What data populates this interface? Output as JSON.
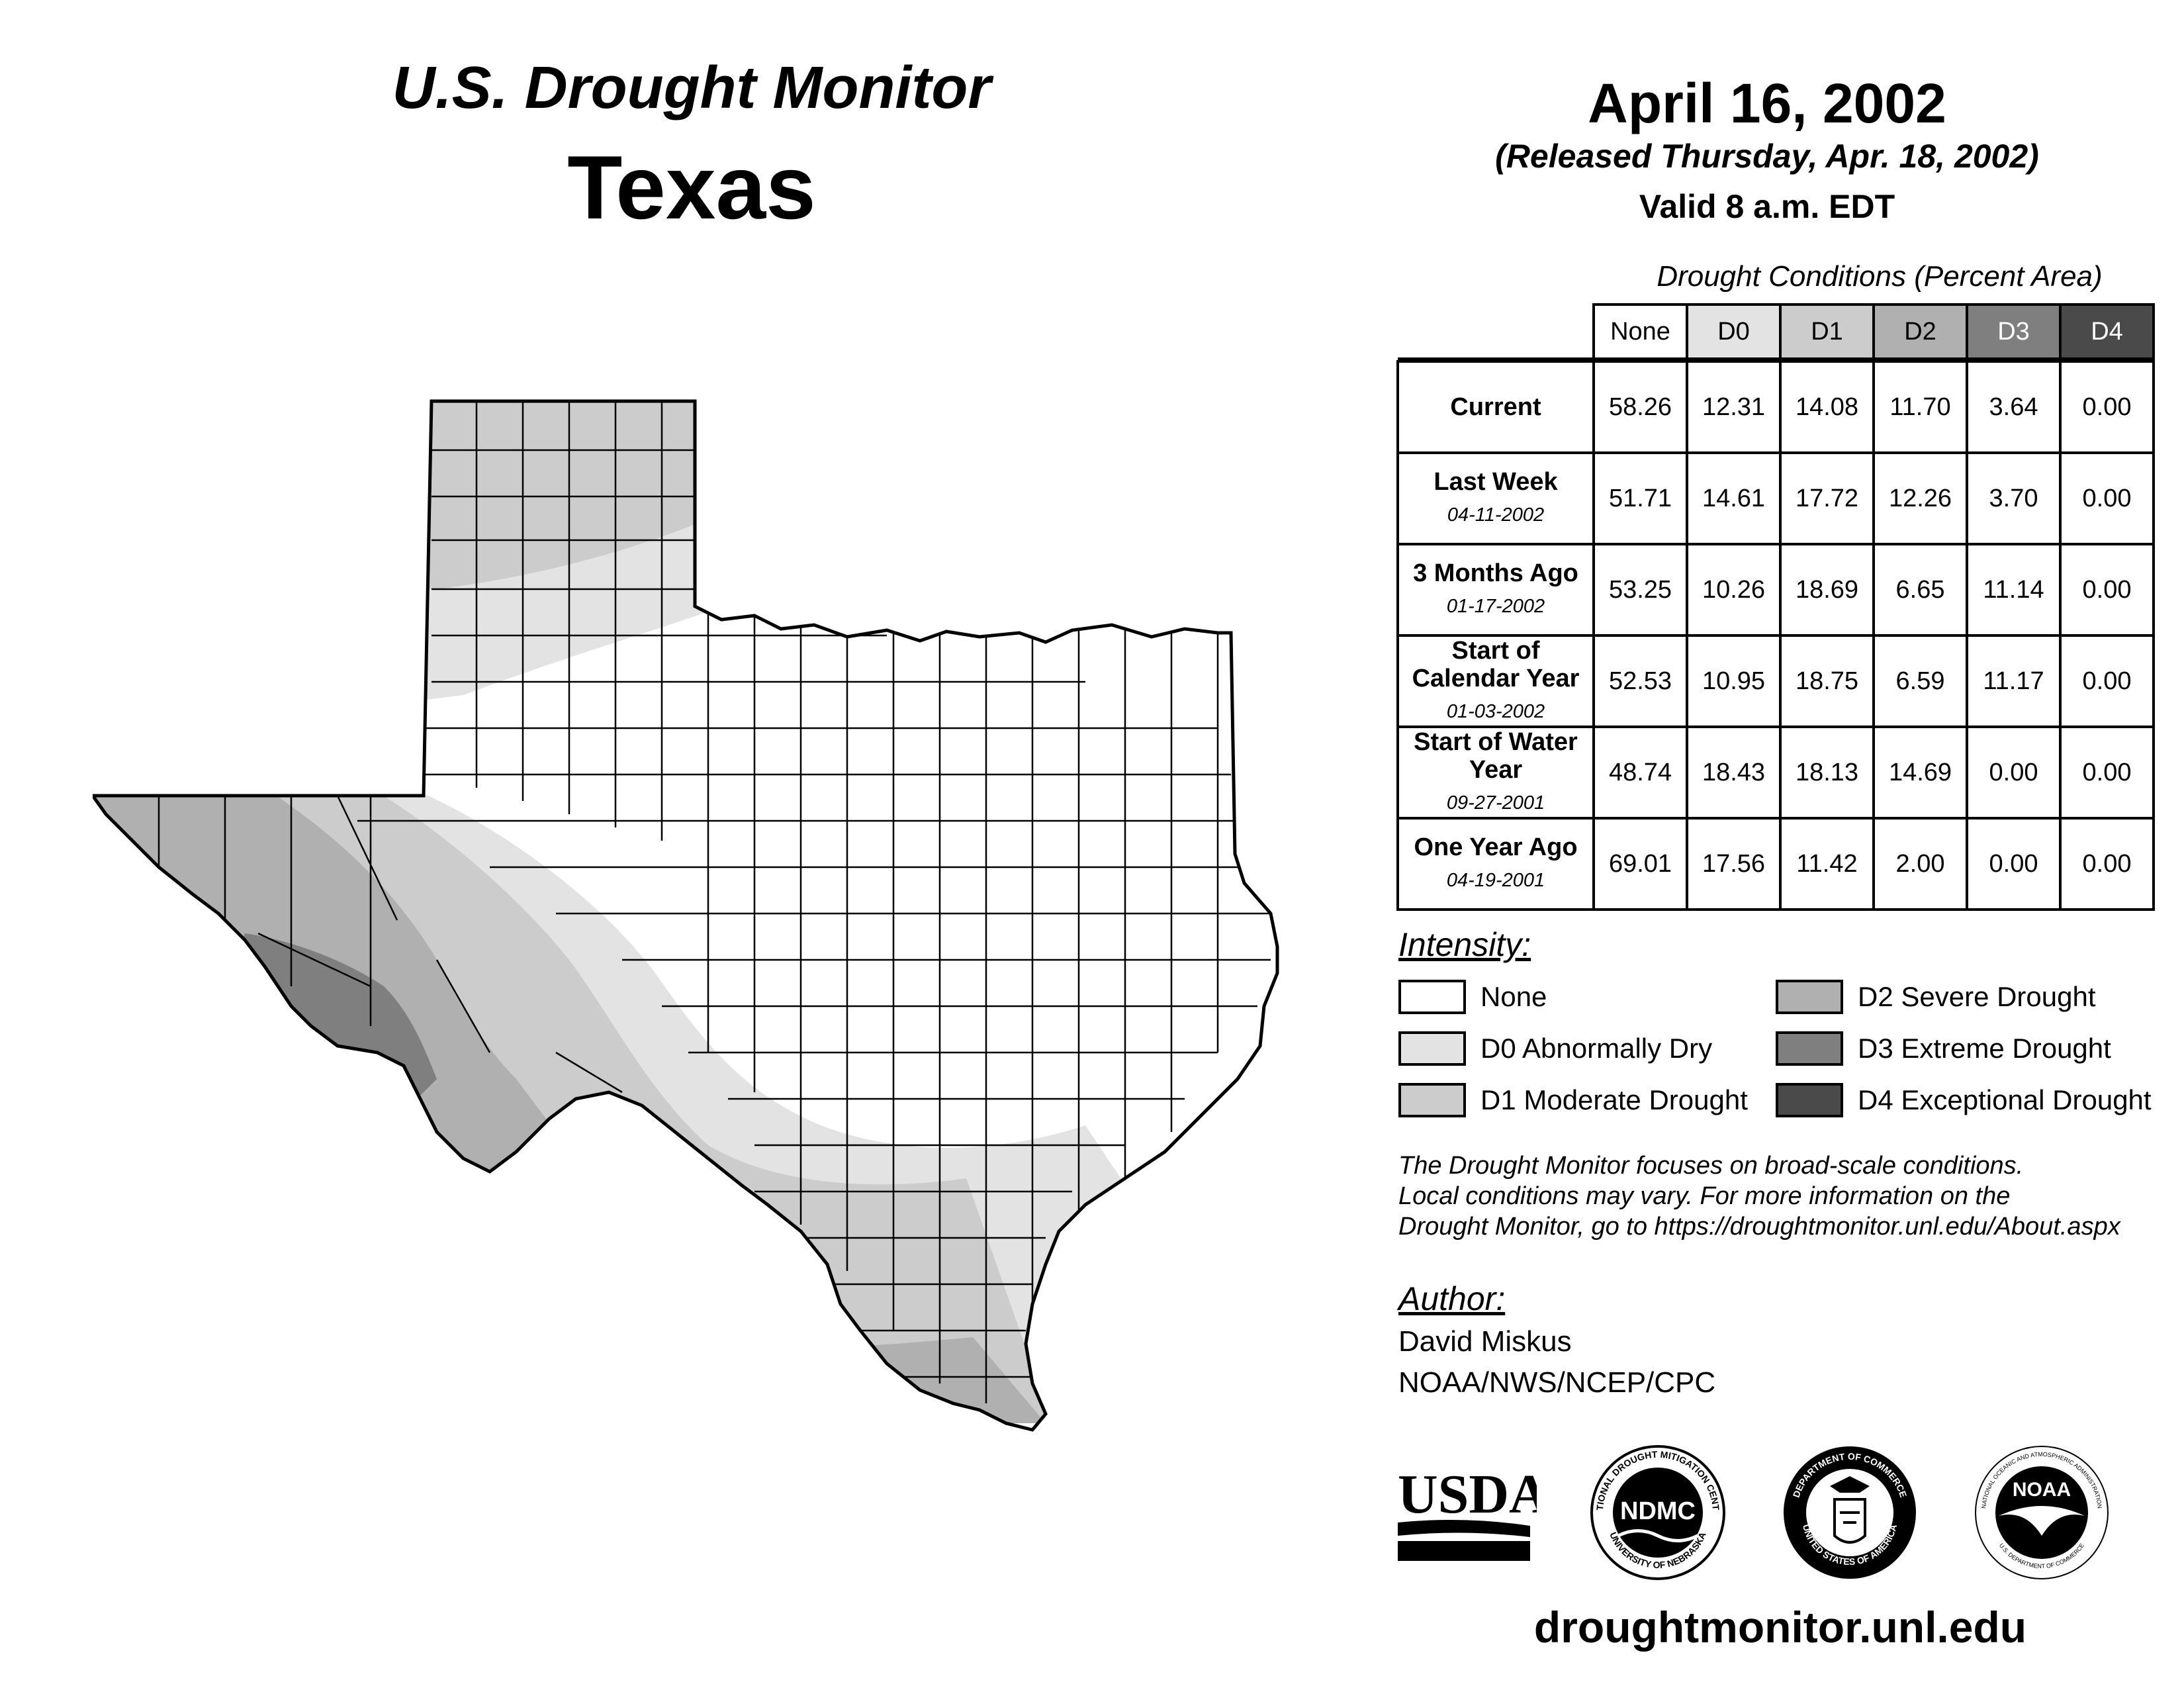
{
  "header": {
    "title_line1": "U.S. Drought Monitor",
    "title_line2": "Texas",
    "date": "April 16, 2002",
    "released": "(Released Thursday, Apr. 18, 2002)",
    "valid": "Valid 8 a.m. EDT"
  },
  "table": {
    "title": "Drought Conditions (Percent Area)",
    "columns": [
      "None",
      "D0",
      "D1",
      "D2",
      "D3",
      "D4"
    ],
    "column_colors": [
      "#ffffff",
      "#e3e3e3",
      "#cccccc",
      "#b0b0b0",
      "#7f7f7f",
      "#4a4a4a"
    ],
    "rows": [
      {
        "label": "Current",
        "sub": "",
        "values": [
          "58.26",
          "12.31",
          "14.08",
          "11.70",
          "3.64",
          "0.00"
        ]
      },
      {
        "label": "Last Week",
        "sub": "04-11-2002",
        "values": [
          "51.71",
          "14.61",
          "17.72",
          "12.26",
          "3.70",
          "0.00"
        ]
      },
      {
        "label": "3 Months Ago",
        "sub": "01-17-2002",
        "values": [
          "53.25",
          "10.26",
          "18.69",
          "6.65",
          "11.14",
          "0.00"
        ]
      },
      {
        "label": "Start of Calendar Year",
        "sub": "01-03-2002",
        "values": [
          "52.53",
          "10.95",
          "18.75",
          "6.59",
          "11.17",
          "0.00"
        ]
      },
      {
        "label": "Start of Water Year",
        "sub": "09-27-2001",
        "values": [
          "48.74",
          "18.43",
          "18.13",
          "14.69",
          "0.00",
          "0.00"
        ]
      },
      {
        "label": "One Year Ago",
        "sub": "04-19-2001",
        "values": [
          "69.01",
          "17.56",
          "11.42",
          "2.00",
          "0.00",
          "0.00"
        ]
      }
    ]
  },
  "legend": {
    "title": "Intensity:",
    "items": [
      {
        "label": "None",
        "color": "#ffffff"
      },
      {
        "label": "D0 Abnormally Dry",
        "color": "#e3e3e3"
      },
      {
        "label": "D1 Moderate Drought",
        "color": "#cccccc"
      },
      {
        "label": "D2 Severe Drought",
        "color": "#b0b0b0"
      },
      {
        "label": "D3 Extreme Drought",
        "color": "#7f7f7f"
      },
      {
        "label": "D4 Exceptional Drought",
        "color": "#4a4a4a"
      }
    ]
  },
  "note": {
    "line1": "The Drought Monitor focuses on broad-scale conditions.",
    "line2": "Local conditions may vary. For more information on the",
    "line3": "Drought Monitor, go to https://droughtmonitor.unl.edu/About.aspx"
  },
  "author": {
    "title": "Author:",
    "name": "David Miskus",
    "org": "NOAA/NWS/NCEP/CPC"
  },
  "logos": {
    "usda": "USDA",
    "ndmc": "NDMC",
    "ndmc_ring_top": "NATIONAL DROUGHT MITIGATION CENTER",
    "ndmc_ring_bottom": "UNIVERSITY OF NEBRASKA",
    "doc_ring_top": "DEPARTMENT OF COMMERCE",
    "doc_ring_bottom": "UNITED STATES OF AMERICA",
    "noaa": "NOAA",
    "noaa_ring_top": "NATIONAL OCEANIC AND ATMOSPHERIC ADMINISTRATION",
    "noaa_ring_bottom": "U.S. DEPARTMENT OF COMMERCE"
  },
  "footer": {
    "url": "droughtmonitor.unl.edu"
  }
}
